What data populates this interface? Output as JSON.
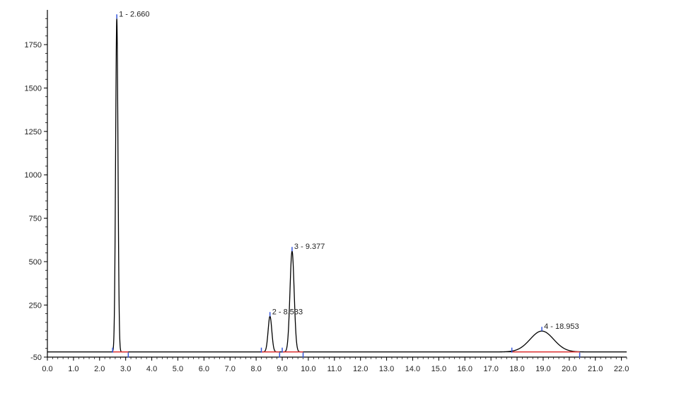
{
  "chart_data": {
    "type": "line",
    "title": "",
    "xlabel": "",
    "ylabel": "",
    "xlim": [
      0.0,
      22.2
    ],
    "ylim": [
      -50,
      1950
    ],
    "x_ticks": [
      "0.0",
      "1.0",
      "2.0",
      "3.0",
      "4.0",
      "5.0",
      "6.0",
      "7.0",
      "8.0",
      "9.0",
      "10.0",
      "11.0",
      "12.0",
      "13.0",
      "14.0",
      "15.0",
      "16.0",
      "17.0",
      "18.0",
      "19.0",
      "20.0",
      "21.0",
      "22.0"
    ],
    "y_ticks": [
      "-50",
      "250",
      "500",
      "750",
      "1000",
      "1250",
      "1500",
      "1750"
    ],
    "baseline": -20,
    "colors": {
      "trace": "#000000",
      "integration_baseline": "#e03030",
      "peak_markers": "#3355dd"
    },
    "peaks": [
      {
        "id": 1,
        "label": "1 - 2.660",
        "rt": 2.66,
        "height": 1900,
        "start": 2.5,
        "end": 3.1,
        "width": 0.045
      },
      {
        "id": 2,
        "label": "2 - 8.533",
        "rt": 8.53,
        "height": 185,
        "start": 8.2,
        "end": 8.9,
        "width": 0.07
      },
      {
        "id": 3,
        "label": "3 - 9.377",
        "rt": 9.377,
        "height": 560,
        "start": 9.0,
        "end": 9.8,
        "width": 0.08
      },
      {
        "id": 4,
        "label": "4 - 18.953",
        "rt": 18.95,
        "height": 100,
        "start": 17.8,
        "end": 20.4,
        "width": 0.45
      }
    ]
  }
}
